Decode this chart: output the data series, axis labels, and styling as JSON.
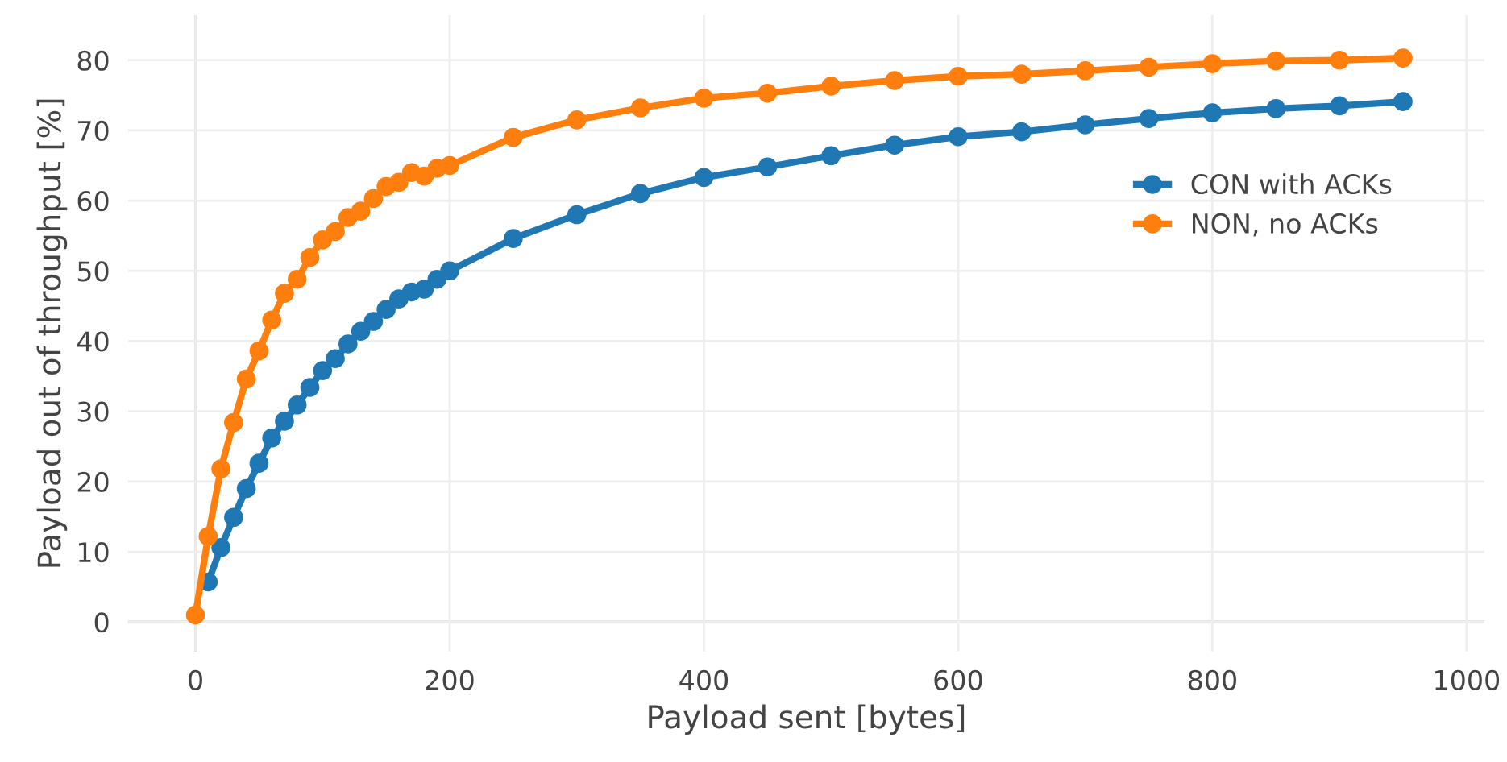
{
  "chart_data": {
    "type": "line",
    "xlabel": "Payload sent [bytes]",
    "ylabel": "Payload out of throughput [%]",
    "x": [
      0,
      10,
      20,
      30,
      40,
      50,
      60,
      70,
      80,
      90,
      100,
      110,
      120,
      130,
      140,
      150,
      160,
      170,
      180,
      190,
      200,
      250,
      300,
      350,
      400,
      450,
      500,
      550,
      600,
      650,
      700,
      750,
      800,
      850,
      900,
      950
    ],
    "series": [
      {
        "name": "CON with ACKs",
        "color": "#1f77b4",
        "values": [
          null,
          5.7,
          10.6,
          14.9,
          19,
          22.6,
          26.2,
          28.6,
          30.9,
          33.4,
          35.8,
          37.5,
          39.6,
          41.4,
          42.8,
          44.5,
          46,
          47,
          47.4,
          48.8,
          50,
          54.6,
          58,
          61,
          63.3,
          64.8,
          66.4,
          67.9,
          69.1,
          69.8,
          70.8,
          71.7,
          72.5,
          73.1,
          73.5,
          74.1
        ]
      },
      {
        "name": "NON, no ACKs",
        "color": "#ff7f0e",
        "values": [
          1,
          12.2,
          21.8,
          28.4,
          34.6,
          38.6,
          43,
          46.8,
          48.8,
          51.9,
          54.4,
          55.6,
          57.6,
          58.5,
          60.3,
          62,
          62.6,
          64,
          63.5,
          64.6,
          65,
          69,
          71.5,
          73.2,
          74.6,
          75.3,
          76.3,
          77.1,
          77.7,
          78,
          78.5,
          79,
          79.5,
          79.9,
          80,
          80.3
        ]
      }
    ],
    "xlim": [
      -53,
      1014
    ],
    "ylim": [
      -4.2,
      86.4
    ],
    "xticks": [
      0,
      200,
      400,
      600,
      800,
      1000
    ],
    "yticks": [
      0,
      10,
      20,
      30,
      40,
      50,
      60,
      70,
      80
    ],
    "grid": true,
    "legend": "right",
    "marker": "circle",
    "line_style": "solid"
  }
}
